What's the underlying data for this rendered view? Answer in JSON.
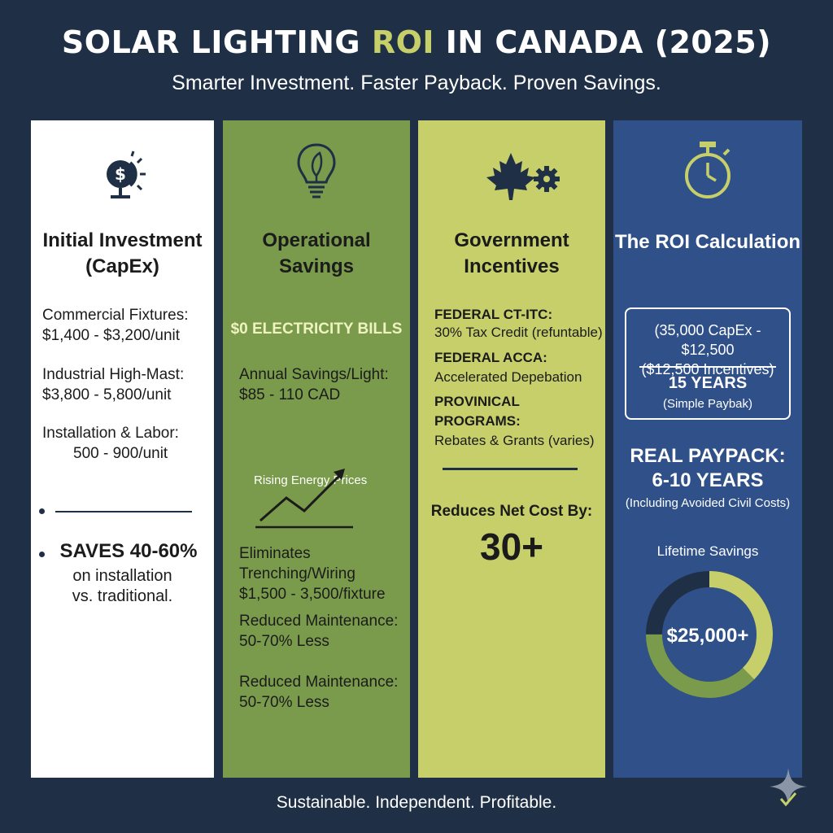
{
  "title": {
    "pre": "SOLAR LIGHTING ",
    "accent": "ROI",
    "post": " IN CANADA (2025)"
  },
  "subtitle": "Smarter Investment. Faster Payback. Proven Savings.",
  "col1": {
    "icon": "money-sun-icon",
    "heading_line1": "Initial Investment",
    "heading_line2": "(CapEx)",
    "fixtures_label": "Commercial Fixtures:",
    "fixtures_value": "$1,400 - $3,200/unit",
    "highmast_label": "Industrial High-Mast:",
    "highmast_value": "$3,800 - 5,800/unit",
    "install_label": "Installation & Labor:",
    "install_value": "500 - 900/unit",
    "saves_big": "SAVES 40-60%",
    "saves_line2": "on installation",
    "saves_line3": "vs. traditional."
  },
  "col2": {
    "icon": "lightbulb-leaf-icon",
    "heading_line1": "Operational",
    "heading_line2": "Savings",
    "bills": "$0 ELECTRICITY BILLS",
    "annual_label": "Annual Savings/Light:",
    "annual_value": "$85 - 110 CAD",
    "rising": "Rising Energy Prices",
    "trench_label": "Eliminates Trenching/Wiring",
    "trench_value": "$1,500 - 3,500/fixture",
    "maint1_label": "Reduced Maintenance:",
    "maint1_value": "50-70% Less",
    "maint2_label": "Reduced Maintenance:",
    "maint2_value": "50-70% Less"
  },
  "col3": {
    "icon": "maple-leaf-gear-icon",
    "heading_line1": "Government",
    "heading_line2": "Incentives",
    "ctitc_label": "FEDERAL CT-ITC:",
    "ctitc_value": "30% Tax Credit (refuntable)",
    "acca_label": "FEDERAL ACCA:",
    "acca_value": "Accelerated Depebation",
    "prov_label": "PROVINICAL PROGRAMS:",
    "prov_value": "Rebates & Grants (varies)",
    "reduces": "Reduces Net Cost By:",
    "reduces_value": "30+"
  },
  "col4": {
    "icon": "stopwatch-icon",
    "heading": "The ROI Calculation",
    "box_line1": "(35,000 CapEx - $12,500",
    "box_line2": "($12,500 Incentives)",
    "box_years": "15 YEARS",
    "box_note": "(Simple Paybak)",
    "real_line1": "REAL PAYPACK:",
    "real_line2": "6-10 YEARS",
    "real_note": "(Including Avoided Civil Costs)",
    "lifetime": "Lifetime Savings",
    "donut_value": "$25,000+",
    "donut_fraction": 0.75
  },
  "footer": "Sustainable. Independent. Profitable.",
  "colors": {
    "navy": "#1f2f45",
    "green": "#7a9b4b",
    "lime": "#c6cf6a",
    "blue": "#2f5088"
  }
}
